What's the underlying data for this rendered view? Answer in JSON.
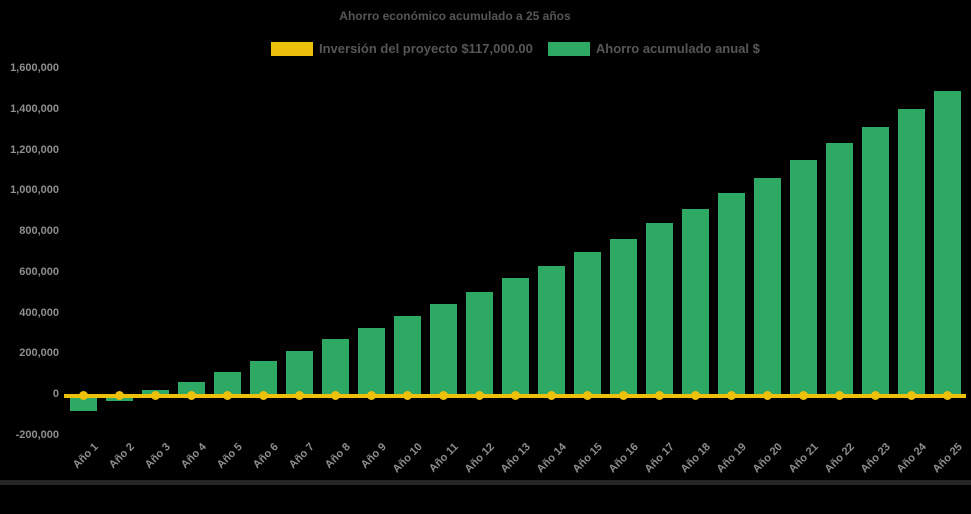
{
  "chart_data": {
    "type": "bar",
    "title": "Ahorro económico acumulado a 25 años",
    "background_color": "#000000",
    "title_color": "#565656",
    "axis_label_color": "#8e8e8e",
    "legend_position": "top",
    "grid": false,
    "xlabel": "",
    "ylabel": "",
    "ylim": [
      -200000,
      1600000
    ],
    "ytick_step": 200000,
    "yticks": [
      {
        "value": 1600000,
        "label": "1,600,000"
      },
      {
        "value": 1400000,
        "label": "1,400,000"
      },
      {
        "value": 1200000,
        "label": "1,200,000"
      },
      {
        "value": 1000000,
        "label": "1,000,000"
      },
      {
        "value": 800000,
        "label": "800,000"
      },
      {
        "value": 600000,
        "label": "600,000"
      },
      {
        "value": 400000,
        "label": "400,000"
      },
      {
        "value": 200000,
        "label": "200,000"
      },
      {
        "value": 0,
        "label": "0"
      },
      {
        "value": -200000,
        "label": "-200,000"
      }
    ],
    "categories": [
      "Año 1",
      "Año 2",
      "Año 3",
      "Año 4",
      "Año 5",
      "Año 6",
      "Año 7",
      "Año 8",
      "Año 9",
      "Año 10",
      "Año 11",
      "Año 12",
      "Año 13",
      "Año 14",
      "Año 15",
      "Año 16",
      "Año 17",
      "Año 18",
      "Año 19",
      "Año 20",
      "Año 21",
      "Año 22",
      "Año 23",
      "Año 24",
      "Año 25"
    ],
    "series": [
      {
        "name": "Inversión del proyecto $117,000.00",
        "type": "line",
        "color": "#edc00c",
        "marker": "circle",
        "values": [
          0,
          0,
          0,
          0,
          0,
          0,
          0,
          0,
          0,
          0,
          0,
          0,
          0,
          0,
          0,
          0,
          0,
          0,
          0,
          0,
          0,
          0,
          0,
          0,
          0
        ]
      },
      {
        "name": "Ahorro acumulado anual $",
        "type": "bar",
        "color": "#2ea963",
        "values": [
          -80000,
          -30000,
          20000,
          60000,
          110000,
          165000,
          215000,
          270000,
          325000,
          385000,
          445000,
          505000,
          570000,
          630000,
          700000,
          765000,
          840000,
          910000,
          990000,
          1065000,
          1150000,
          1235000,
          1315000,
          1400000,
          1490000
        ]
      }
    ]
  }
}
